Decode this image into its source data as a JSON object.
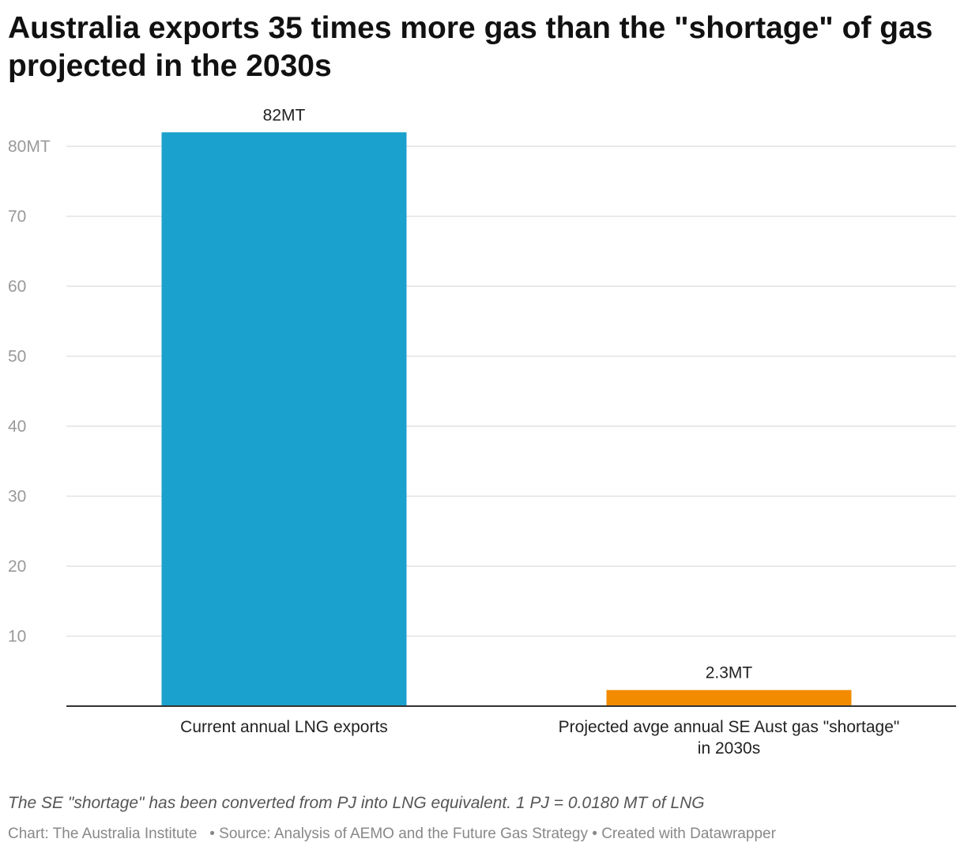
{
  "title": "Australia exports 35 times more gas than the \"shortage\" of gas projected in the 2030s",
  "notes": "The SE \"shortage\" has been converted from PJ into LNG equivalent. 1 PJ = 0.0180 MT of LNG",
  "credits": {
    "chart": "Chart: The Australia Institute",
    "source": "Source: Analysis of AEMO and the Future Gas Strategy",
    "created": "Created with Datawrapper"
  },
  "colors": {
    "bar1": "#1aa1cd",
    "bar2": "#f28b00",
    "grid": "#e2e2e2",
    "axis_text": "#999999",
    "label_text": "#222222"
  },
  "chart_data": {
    "type": "bar",
    "title": "Australia exports 35 times more gas than the \"shortage\" of gas projected in the 2030s",
    "categories": [
      "Current annual LNG exports",
      "Projected avge annual SE Aust gas \"shortage\" in 2030s"
    ],
    "values": [
      82,
      2.3
    ],
    "value_labels": [
      "82MT",
      "2.3MT"
    ],
    "bar_colors": [
      "#1aa1cd",
      "#f28b00"
    ],
    "ylim": [
      0,
      80
    ],
    "yticks": [
      10,
      20,
      30,
      40,
      50,
      60,
      70,
      80
    ],
    "ytick_labels": [
      "10",
      "20",
      "30",
      "40",
      "50",
      "60",
      "70",
      "80MT"
    ],
    "grid": true,
    "xlabel": "",
    "ylabel": ""
  }
}
